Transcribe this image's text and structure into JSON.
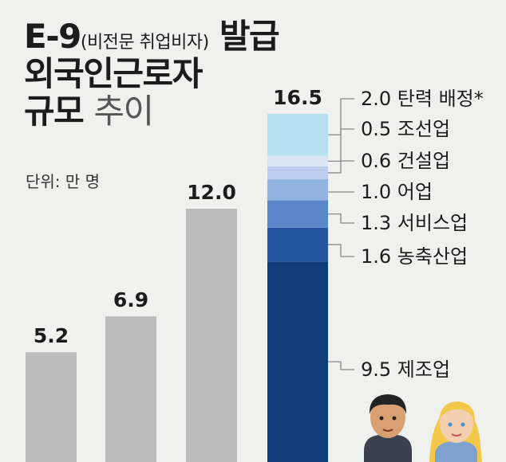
{
  "title": {
    "part1": "E-9",
    "part1_sub": "(비전문 취업비자)",
    "part1_end": "발급",
    "line2": "외국인근로자",
    "line3_bold": "규모",
    "line3_light": "추이"
  },
  "unit": "단위: 만 명",
  "chart_data": {
    "type": "bar",
    "values": [
      5.2,
      6.9,
      12.0,
      16.5
    ],
    "value_labels": [
      "5.2",
      "6.9",
      "12.0",
      "16.5"
    ],
    "ylim": [
      0,
      20
    ],
    "stacked_last_bar": {
      "total": 16.5,
      "segments": [
        {
          "name": "제조업",
          "value": 9.5,
          "label": "9.5 제조업",
          "color": "#0f3d7c"
        },
        {
          "name": "농축산업",
          "value": 1.6,
          "label": "1.6 농축산업",
          "color": "#2556a0"
        },
        {
          "name": "서비스업",
          "value": 1.3,
          "label": "1.3 서비스업",
          "color": "#5a87c8"
        },
        {
          "name": "어업",
          "value": 1.0,
          "label": "1.0 어업",
          "color": "#93b4e2"
        },
        {
          "name": "건설업",
          "value": 0.6,
          "label": "0.6 건설업",
          "color": "#bccdee"
        },
        {
          "name": "조선업",
          "value": 0.5,
          "label": "0.5 조선업",
          "color": "#dbe4f5"
        },
        {
          "name": "탄력 배정*",
          "value": 2.0,
          "label": "2.0 탄력 배정*",
          "color": "#b6dff0"
        }
      ]
    },
    "colors": {
      "plain_bar": "#bdbcbc",
      "leader_line": "#888888"
    }
  }
}
